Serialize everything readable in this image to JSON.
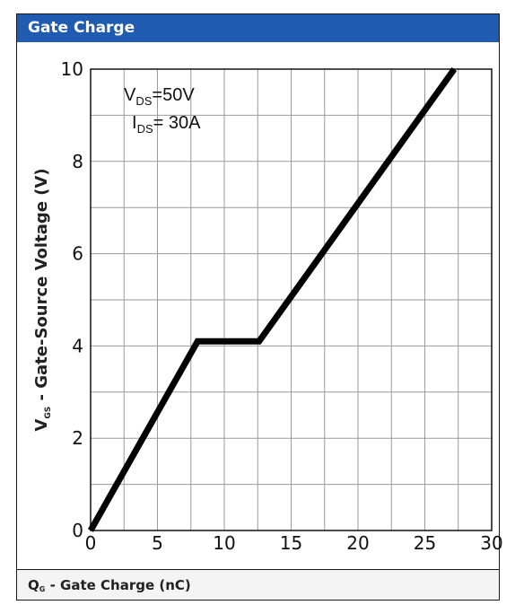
{
  "panel": {
    "title": "Gate Charge",
    "xlabel_symbol": "Q",
    "xlabel_sub": "G",
    "xlabel_text": " - Gate Charge (nC)"
  },
  "chart_data": {
    "type": "line",
    "title": "Gate Charge",
    "xlabel": "QG - Gate Charge (nC)",
    "ylabel": "VGS - Gate-Source Voltage (V)",
    "ylabel_symbol": "V",
    "ylabel_sub": "GS",
    "ylabel_text": " - Gate-Source Voltage (V)",
    "xlim": [
      0,
      30
    ],
    "ylim": [
      0,
      10
    ],
    "xticks": [
      0,
      5,
      10,
      15,
      20,
      25,
      30
    ],
    "yticks": [
      0,
      2,
      4,
      6,
      8,
      10
    ],
    "grid": true,
    "annotation": [
      {
        "symbol": "V",
        "sub": "DS",
        "value": "=50V"
      },
      {
        "symbol": "I",
        "sub": "DS",
        "value": "= 30A"
      }
    ],
    "series": [
      {
        "x": [
          0,
          8.0,
          12.6,
          27.2
        ],
        "y": [
          0,
          4.1,
          4.1,
          10
        ]
      }
    ],
    "colors": {
      "line": "#000000",
      "header": "#1f5bb0"
    }
  }
}
